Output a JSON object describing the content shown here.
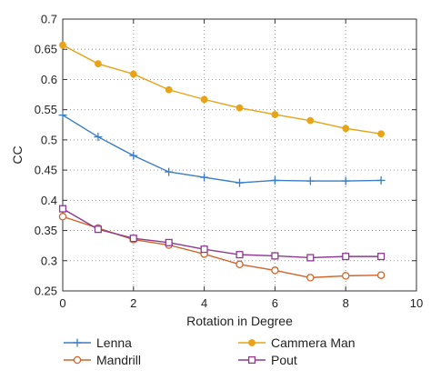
{
  "chart_data": {
    "type": "line",
    "xlabel": "Rotation in Degree",
    "ylabel": "CC",
    "xlim": [
      0,
      10
    ],
    "ylim": [
      0.25,
      0.7
    ],
    "xticks": [
      "0",
      "2",
      "4",
      "6",
      "8",
      "10"
    ],
    "yticks": [
      "0.25",
      "0.3",
      "0.35",
      "0.4",
      "0.45",
      "0.5",
      "0.55",
      "0.6",
      "0.65",
      "0.7"
    ],
    "grid": true,
    "legend_position": "below",
    "x": [
      0,
      1,
      2,
      3,
      4,
      5,
      6,
      7,
      8,
      9
    ],
    "series": [
      {
        "name": "Lenna",
        "marker": "plus",
        "color": "#3b7dc4",
        "values": [
          0.541,
          0.505,
          0.474,
          0.447,
          0.438,
          0.429,
          0.433,
          0.432,
          0.432,
          0.433
        ]
      },
      {
        "name": "Cammera Man",
        "marker": "filled-circle",
        "color": "#e8a317",
        "values": [
          0.657,
          0.626,
          0.609,
          0.583,
          0.567,
          0.553,
          0.542,
          0.532,
          0.519,
          0.51
        ]
      },
      {
        "name": "Mandrill",
        "marker": "open-circle",
        "color": "#d0642a",
        "values": [
          0.373,
          0.354,
          0.335,
          0.326,
          0.311,
          0.294,
          0.284,
          0.272,
          0.275,
          0.276
        ]
      },
      {
        "name": "Pout",
        "marker": "open-square",
        "color": "#8b3a8f",
        "values": [
          0.386,
          0.352,
          0.337,
          0.33,
          0.319,
          0.31,
          0.308,
          0.305,
          0.307,
          0.307
        ]
      }
    ]
  }
}
